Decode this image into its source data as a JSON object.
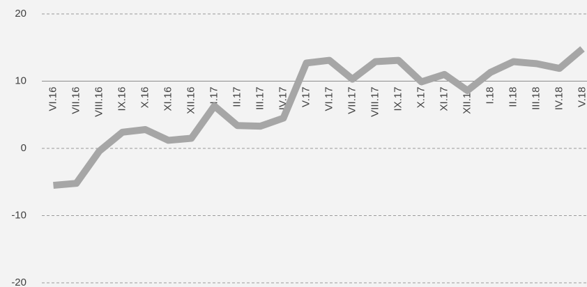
{
  "chart_data": {
    "type": "line",
    "categories": [
      "VI.16",
      "VII.16",
      "VIII.16",
      "IX.16",
      "X.16",
      "XI.16",
      "XII.16",
      "I.17",
      "II.17",
      "III.17",
      "IV.17",
      "V.17",
      "VI.17",
      "VII.17",
      "VIII.17",
      "IX.17",
      "X.17",
      "XI.17",
      "XII.17",
      "I.18",
      "II.18",
      "III.18",
      "IV.18",
      "V.18"
    ],
    "values": [
      -5.5,
      -5.2,
      -0.4,
      2.4,
      2.8,
      1.2,
      1.5,
      6.3,
      3.4,
      3.3,
      4.5,
      12.7,
      13.1,
      10.3,
      12.9,
      13.1,
      9.9,
      11.0,
      8.6,
      11.3,
      12.9,
      12.6,
      11.9,
      14.8
    ],
    "color": "#a6a6a6",
    "ylim": [
      -20,
      20
    ],
    "yticks": [
      -20,
      -10,
      0,
      10,
      20
    ],
    "grid": true,
    "x_axis_at": 10
  }
}
